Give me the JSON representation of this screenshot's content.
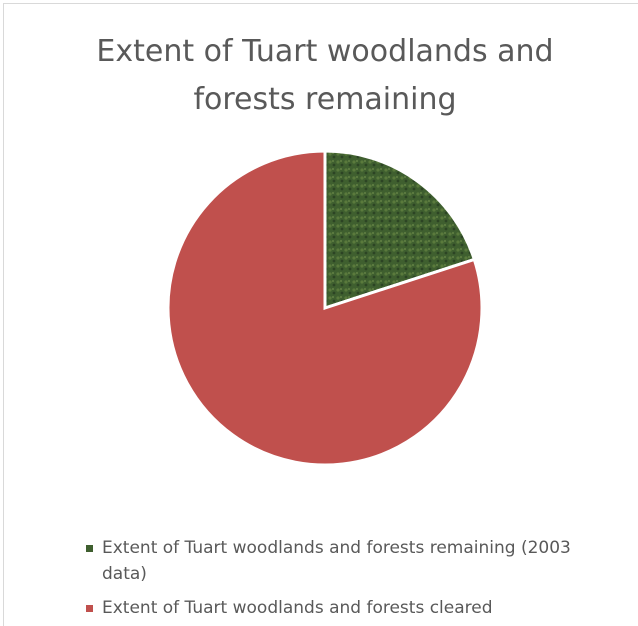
{
  "chart_data": {
    "type": "pie",
    "title": "Extent of Tuart woodlands and forests remaining",
    "categories": [
      "Extent of Tuart woodlands and forests remaining (2003 data)",
      "Extent of Tuart woodlands and forests cleared"
    ],
    "values": [
      20,
      80
    ],
    "colors": [
      "#3f5f2f",
      "#c0504d"
    ],
    "legend": "bottom"
  }
}
